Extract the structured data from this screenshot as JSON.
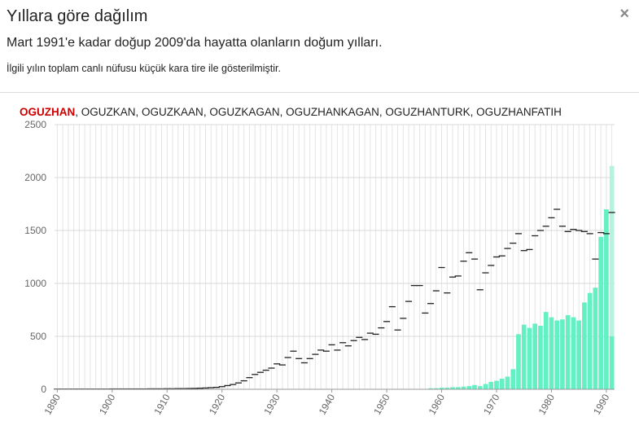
{
  "header": {
    "title": "Yıllara göre dağılım",
    "close": "×",
    "subtitle": "Mart 1991'e kadar doğup 2009'da hayatta olanların doğum yılları.",
    "note": "İlgili yılın toplam canlı nüfusu küçük kara tire ile gösterilmiştir."
  },
  "names": {
    "items": [
      "OGUZHAN",
      "OGUZKAN",
      "OGUZKAAN",
      "OGUZKAGAN",
      "OGUZHANKAGAN",
      "OGUZHANTURK",
      "OGUZHANFATIH"
    ],
    "separator": ", ",
    "active": 0,
    "active_color": "#cc0000"
  },
  "chart_data": {
    "type": "bar",
    "color": "#64f0c3",
    "total_color": "#222222",
    "grid": true,
    "xlim": [
      1889.5,
      1991.5
    ],
    "xticks": [
      1890,
      1900,
      1910,
      1920,
      1930,
      1940,
      1950,
      1960,
      1970,
      1980,
      1990
    ],
    "ylim": [
      0,
      2500
    ],
    "yticks": [
      0,
      500,
      1000,
      1500,
      2000,
      2500
    ],
    "x": [
      1890,
      1891,
      1892,
      1893,
      1894,
      1895,
      1896,
      1897,
      1898,
      1899,
      1900,
      1901,
      1902,
      1903,
      1904,
      1905,
      1906,
      1907,
      1908,
      1909,
      1910,
      1911,
      1912,
      1913,
      1914,
      1915,
      1916,
      1917,
      1918,
      1919,
      1920,
      1921,
      1922,
      1923,
      1924,
      1925,
      1926,
      1927,
      1928,
      1929,
      1930,
      1931,
      1932,
      1933,
      1934,
      1935,
      1936,
      1937,
      1938,
      1939,
      1940,
      1941,
      1942,
      1943,
      1944,
      1945,
      1946,
      1947,
      1948,
      1949,
      1950,
      1951,
      1952,
      1953,
      1954,
      1955,
      1956,
      1957,
      1958,
      1959,
      1960,
      1961,
      1962,
      1963,
      1964,
      1965,
      1966,
      1967,
      1968,
      1969,
      1970,
      1971,
      1972,
      1973,
      1974,
      1975,
      1976,
      1977,
      1978,
      1979,
      1980,
      1981,
      1982,
      1983,
      1984,
      1985,
      1986,
      1987,
      1988,
      1989,
      1990,
      1991
    ],
    "values": [
      0,
      0,
      0,
      0,
      0,
      0,
      0,
      0,
      0,
      0,
      0,
      0,
      0,
      0,
      0,
      0,
      0,
      0,
      0,
      0,
      0,
      0,
      0,
      0,
      0,
      0,
      0,
      0,
      0,
      0,
      0,
      0,
      0,
      0,
      0,
      0,
      0,
      0,
      0,
      0,
      0,
      0,
      0,
      0,
      0,
      0,
      0,
      0,
      0,
      0,
      0,
      0,
      0,
      0,
      0,
      0,
      0,
      0,
      0,
      0,
      0,
      0,
      0,
      0,
      0,
      0,
      0,
      0,
      10,
      10,
      15,
      15,
      20,
      20,
      25,
      30,
      40,
      30,
      50,
      70,
      80,
      100,
      120,
      190,
      520,
      610,
      580,
      620,
      600,
      730,
      680,
      650,
      660,
      700,
      680,
      650,
      820,
      910,
      960,
      1440,
      1700,
      500
    ],
    "total_births": [
      2,
      2,
      2,
      2,
      2,
      2,
      2,
      2,
      2,
      2,
      3,
      3,
      3,
      3,
      3,
      3,
      3,
      4,
      4,
      4,
      5,
      5,
      6,
      6,
      7,
      8,
      10,
      12,
      15,
      18,
      25,
      35,
      45,
      60,
      80,
      110,
      140,
      160,
      180,
      200,
      240,
      230,
      300,
      360,
      290,
      250,
      290,
      330,
      370,
      360,
      420,
      370,
      440,
      410,
      460,
      490,
      470,
      530,
      520,
      580,
      640,
      780,
      560,
      670,
      830,
      980,
      980,
      720,
      810,
      930,
      1150,
      910,
      1060,
      1070,
      1210,
      1290,
      1230,
      940,
      1100,
      1170,
      1250,
      1260,
      1330,
      1380,
      1470,
      1310,
      1320,
      1450,
      1500,
      1540,
      1620,
      1700,
      1540,
      1490,
      1510,
      1500,
      1490,
      1470,
      1230,
      1480,
      1470,
      1670
    ],
    "partial_year_estimate": {
      "x": 1991,
      "value": 2110,
      "color": "#b4f3dd"
    }
  }
}
